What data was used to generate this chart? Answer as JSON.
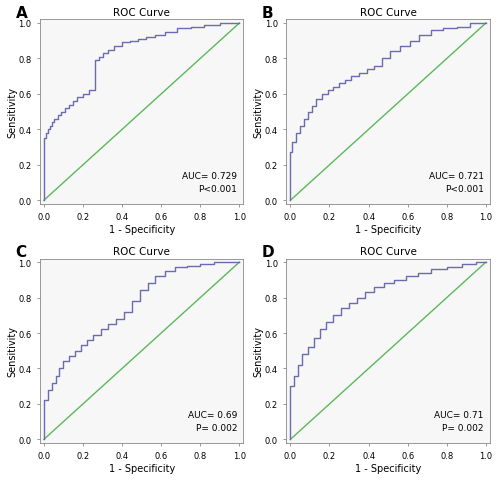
{
  "title": "ROC Curve",
  "xlabel": "1 - Specificity",
  "ylabel": "Sensitivity",
  "panel_labels": [
    "A",
    "B",
    "C",
    "D"
  ],
  "auc_texts": [
    "AUC= 0.729\nP<0.001",
    "AUC= 0.721\nP<0.001",
    "AUC= 0.69\nP= 0.002",
    "AUC= 0.71\nP= 0.002"
  ],
  "roc_color": "#6B6BAF",
  "diag_color": "#5CB85C",
  "bg_color": "#f7f7f7",
  "curves": {
    "A": {
      "fpr": [
        0.0,
        0.0,
        0.01,
        0.01,
        0.02,
        0.02,
        0.03,
        0.03,
        0.04,
        0.04,
        0.05,
        0.05,
        0.07,
        0.07,
        0.09,
        0.09,
        0.11,
        0.11,
        0.13,
        0.13,
        0.15,
        0.15,
        0.17,
        0.17,
        0.2,
        0.2,
        0.23,
        0.23,
        0.26,
        0.26,
        0.28,
        0.28,
        0.3,
        0.3,
        0.33,
        0.33,
        0.36,
        0.36,
        0.4,
        0.4,
        0.44,
        0.44,
        0.48,
        0.48,
        0.52,
        0.52,
        0.57,
        0.57,
        0.62,
        0.62,
        0.68,
        0.68,
        0.75,
        0.75,
        0.82,
        0.82,
        0.9,
        0.9,
        0.95,
        0.95,
        1.0
      ],
      "tpr": [
        0.0,
        0.35,
        0.35,
        0.38,
        0.38,
        0.4,
        0.4,
        0.42,
        0.42,
        0.44,
        0.44,
        0.46,
        0.46,
        0.48,
        0.48,
        0.5,
        0.5,
        0.52,
        0.52,
        0.54,
        0.54,
        0.56,
        0.56,
        0.58,
        0.58,
        0.6,
        0.6,
        0.62,
        0.62,
        0.79,
        0.79,
        0.81,
        0.81,
        0.83,
        0.83,
        0.85,
        0.85,
        0.87,
        0.87,
        0.89,
        0.89,
        0.9,
        0.9,
        0.91,
        0.91,
        0.92,
        0.92,
        0.93,
        0.93,
        0.95,
        0.95,
        0.97,
        0.97,
        0.98,
        0.98,
        0.99,
        0.99,
        1.0,
        1.0,
        1.0,
        1.0
      ]
    },
    "B": {
      "fpr": [
        0.0,
        0.0,
        0.01,
        0.01,
        0.03,
        0.03,
        0.05,
        0.05,
        0.07,
        0.07,
        0.09,
        0.09,
        0.11,
        0.11,
        0.13,
        0.13,
        0.16,
        0.16,
        0.19,
        0.19,
        0.22,
        0.22,
        0.25,
        0.25,
        0.28,
        0.28,
        0.31,
        0.31,
        0.35,
        0.35,
        0.39,
        0.39,
        0.43,
        0.43,
        0.47,
        0.47,
        0.51,
        0.51,
        0.56,
        0.56,
        0.61,
        0.61,
        0.66,
        0.66,
        0.72,
        0.72,
        0.78,
        0.78,
        0.85,
        0.85,
        0.92,
        0.92,
        1.0
      ],
      "tpr": [
        0.0,
        0.27,
        0.27,
        0.33,
        0.33,
        0.38,
        0.38,
        0.42,
        0.42,
        0.46,
        0.46,
        0.5,
        0.5,
        0.53,
        0.53,
        0.57,
        0.57,
        0.6,
        0.6,
        0.62,
        0.62,
        0.64,
        0.64,
        0.66,
        0.66,
        0.68,
        0.68,
        0.7,
        0.7,
        0.72,
        0.72,
        0.74,
        0.74,
        0.76,
        0.76,
        0.8,
        0.8,
        0.84,
        0.84,
        0.87,
        0.87,
        0.9,
        0.9,
        0.93,
        0.93,
        0.96,
        0.96,
        0.97,
        0.97,
        0.98,
        0.98,
        1.0,
        1.0
      ]
    },
    "C": {
      "fpr": [
        0.0,
        0.0,
        0.02,
        0.02,
        0.04,
        0.04,
        0.06,
        0.06,
        0.08,
        0.08,
        0.1,
        0.1,
        0.13,
        0.13,
        0.16,
        0.16,
        0.19,
        0.19,
        0.22,
        0.22,
        0.25,
        0.25,
        0.29,
        0.29,
        0.33,
        0.33,
        0.37,
        0.37,
        0.41,
        0.41,
        0.45,
        0.45,
        0.49,
        0.49,
        0.53,
        0.53,
        0.57,
        0.57,
        0.62,
        0.62,
        0.67,
        0.67,
        0.73,
        0.73,
        0.8,
        0.8,
        0.87,
        0.87,
        0.94,
        0.94,
        1.0
      ],
      "tpr": [
        0.0,
        0.22,
        0.22,
        0.28,
        0.28,
        0.32,
        0.32,
        0.36,
        0.36,
        0.4,
        0.4,
        0.44,
        0.44,
        0.47,
        0.47,
        0.5,
        0.5,
        0.53,
        0.53,
        0.56,
        0.56,
        0.59,
        0.59,
        0.62,
        0.62,
        0.65,
        0.65,
        0.68,
        0.68,
        0.72,
        0.72,
        0.78,
        0.78,
        0.84,
        0.84,
        0.88,
        0.88,
        0.92,
        0.92,
        0.95,
        0.95,
        0.97,
        0.97,
        0.98,
        0.98,
        0.99,
        0.99,
        1.0,
        1.0,
        1.0,
        1.0
      ]
    },
    "D": {
      "fpr": [
        0.0,
        0.0,
        0.02,
        0.02,
        0.04,
        0.04,
        0.06,
        0.06,
        0.09,
        0.09,
        0.12,
        0.12,
        0.15,
        0.15,
        0.18,
        0.18,
        0.22,
        0.22,
        0.26,
        0.26,
        0.3,
        0.3,
        0.34,
        0.34,
        0.38,
        0.38,
        0.43,
        0.43,
        0.48,
        0.48,
        0.53,
        0.53,
        0.59,
        0.59,
        0.65,
        0.65,
        0.72,
        0.72,
        0.8,
        0.8,
        0.88,
        0.88,
        0.95,
        0.95,
        1.0
      ],
      "tpr": [
        0.0,
        0.3,
        0.3,
        0.36,
        0.36,
        0.42,
        0.42,
        0.48,
        0.48,
        0.52,
        0.52,
        0.57,
        0.57,
        0.62,
        0.62,
        0.66,
        0.66,
        0.7,
        0.7,
        0.74,
        0.74,
        0.77,
        0.77,
        0.8,
        0.8,
        0.83,
        0.83,
        0.86,
        0.86,
        0.88,
        0.88,
        0.9,
        0.9,
        0.92,
        0.92,
        0.94,
        0.94,
        0.96,
        0.96,
        0.97,
        0.97,
        0.99,
        0.99,
        1.0,
        1.0
      ]
    }
  }
}
